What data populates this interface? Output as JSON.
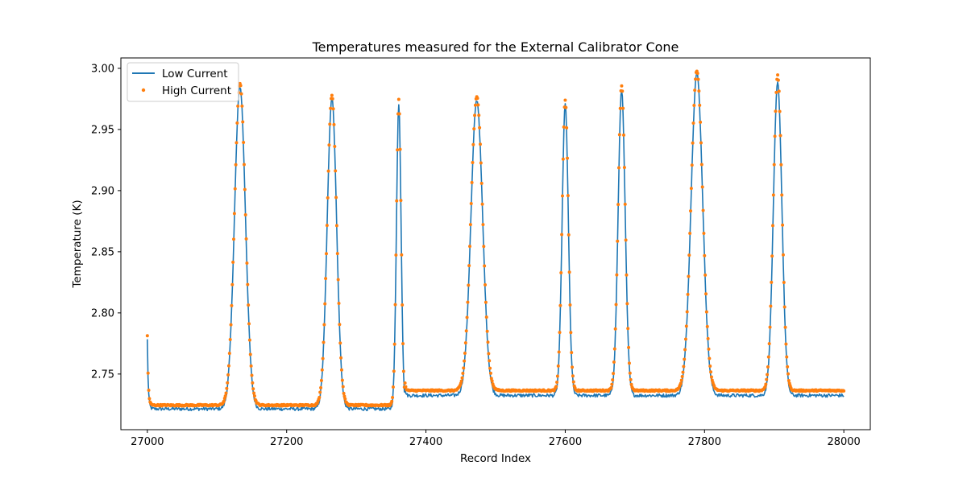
{
  "chart_data": {
    "type": "line",
    "title": "Temperatures measured for the External Calibrator Cone",
    "xlabel": "Record Index",
    "ylabel": "Temperature (K)",
    "xlim": [
      26962,
      28038
    ],
    "ylim": [
      2.7045,
      3.0085
    ],
    "xticks": [
      27000,
      27200,
      27400,
      27600,
      27800,
      28000
    ],
    "yticks": [
      2.75,
      2.8,
      2.85,
      2.9,
      2.95,
      3.0
    ],
    "ytick_labels": [
      "2.75",
      "2.80",
      "2.85",
      "2.90",
      "2.95",
      "3.00"
    ],
    "grid": false,
    "legend_position": "top-left",
    "x_start": 27000,
    "x_end": 28000,
    "series": [
      {
        "name": "Low Current",
        "kind": "line",
        "color": "#1f77b4",
        "start_value": 2.778,
        "segments": [
          {
            "from": 27000,
            "to": 27370,
            "baseline": 2.7215
          },
          {
            "from": 27370,
            "to": 28000,
            "baseline": 2.7325
          }
        ],
        "peaks": [
          {
            "center": 27133,
            "height": 2.985,
            "half_width": 14
          },
          {
            "center": 27265,
            "height": 2.976,
            "half_width": 12
          },
          {
            "center": 27361,
            "height": 2.97,
            "half_width": 6
          },
          {
            "center": 27473,
            "height": 2.974,
            "half_width": 15
          },
          {
            "center": 27600,
            "height": 2.97,
            "half_width": 8
          },
          {
            "center": 27681,
            "height": 2.982,
            "half_width": 9
          },
          {
            "center": 27789,
            "height": 2.996,
            "half_width": 15
          },
          {
            "center": 27905,
            "height": 2.988,
            "half_width": 11
          }
        ]
      },
      {
        "name": "High Current",
        "kind": "scatter",
        "color": "#ff7f0e",
        "start_value": 2.781,
        "segments": [
          {
            "from": 27000,
            "to": 27370,
            "baseline": 2.7245
          },
          {
            "from": 27370,
            "to": 28000,
            "baseline": 2.7365
          }
        ],
        "peaks": [
          {
            "center": 27133,
            "height": 2.988,
            "half_width": 14
          },
          {
            "center": 27265,
            "height": 2.978,
            "half_width": 12
          },
          {
            "center": 27361,
            "height": 2.974,
            "half_width": 6
          },
          {
            "center": 27473,
            "height": 2.977,
            "half_width": 15
          },
          {
            "center": 27600,
            "height": 2.974,
            "half_width": 8
          },
          {
            "center": 27681,
            "height": 2.986,
            "half_width": 9
          },
          {
            "center": 27789,
            "height": 2.998,
            "half_width": 15
          },
          {
            "center": 27905,
            "height": 2.994,
            "half_width": 11
          }
        ]
      }
    ]
  }
}
